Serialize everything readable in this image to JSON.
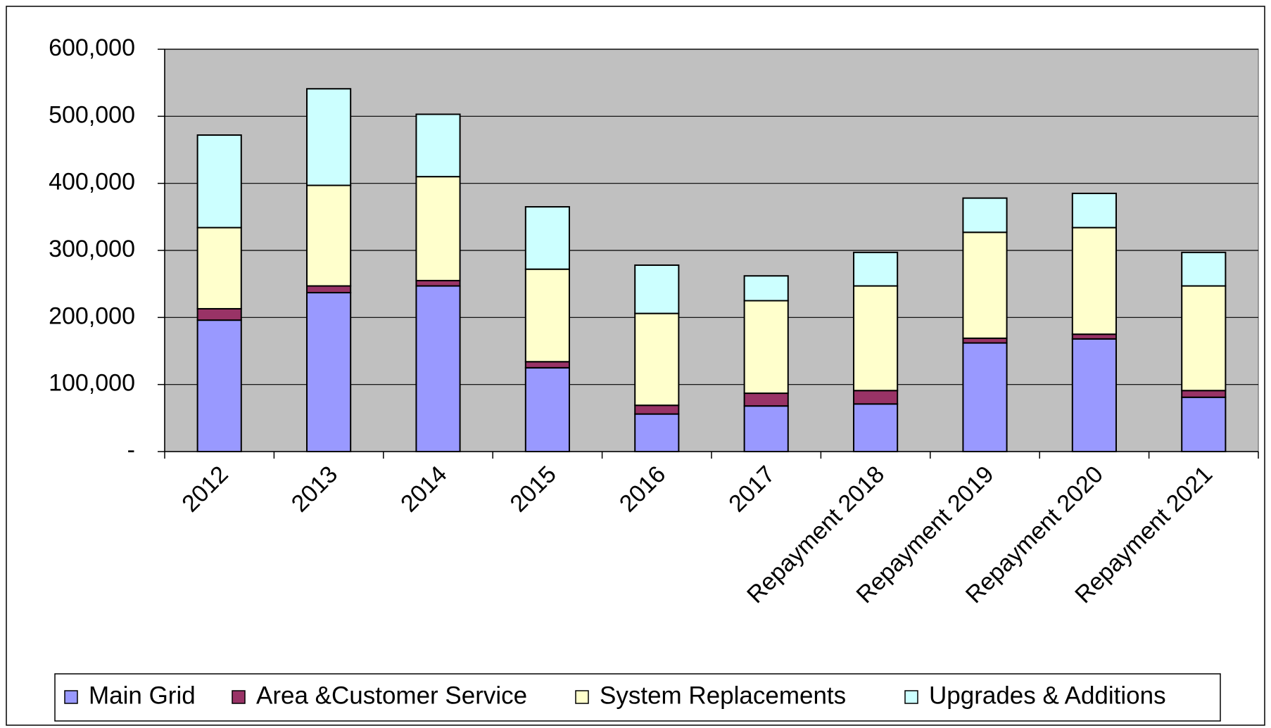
{
  "chart_data": {
    "type": "stacked-bar",
    "categories": [
      "2012",
      "2013",
      "2014",
      "2015",
      "2016",
      "2017",
      "Repayment 2018",
      "Repayment 2019",
      "Repayment 2020",
      "Repayment 2021"
    ],
    "series": [
      {
        "name": "Main Grid",
        "color": "#9999ff",
        "values": [
          196000,
          237000,
          247000,
          125000,
          56000,
          68000,
          71000,
          162000,
          168000,
          81000
        ]
      },
      {
        "name": "Area &Customer Service",
        "color": "#993366",
        "values": [
          17000,
          10000,
          8000,
          9000,
          13000,
          19000,
          20000,
          7000,
          7000,
          10000
        ]
      },
      {
        "name": "System Replacements",
        "color": "#ffffcc",
        "values": [
          121000,
          150000,
          155000,
          138000,
          137000,
          138000,
          156000,
          158000,
          159000,
          156000
        ]
      },
      {
        "name": "Upgrades & Additions",
        "color": "#ccffff",
        "values": [
          138000,
          144000,
          93000,
          93000,
          72000,
          37000,
          50000,
          51000,
          51000,
          50000
        ]
      }
    ],
    "ylim": [
      0,
      600000
    ],
    "yticks": [
      {
        "value": 0,
        "label": "-"
      },
      {
        "value": 100000,
        "label": "100,000"
      },
      {
        "value": 200000,
        "label": "200,000"
      },
      {
        "value": 300000,
        "label": "300,000"
      },
      {
        "value": 400000,
        "label": "400,000"
      },
      {
        "value": 500000,
        "label": "500,000"
      },
      {
        "value": 600000,
        "label": "600,000"
      }
    ],
    "grid": true,
    "legend": "bottom"
  }
}
